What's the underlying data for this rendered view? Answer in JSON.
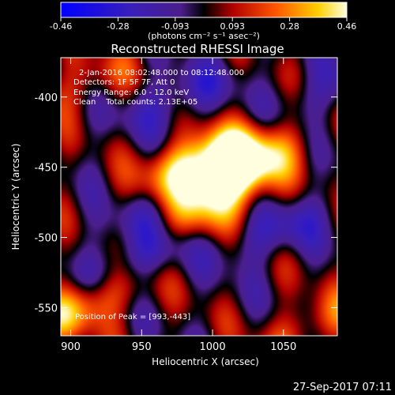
{
  "colorbar": {
    "ticks": [
      "-0.46",
      "-0.28",
      "-0.093",
      "0.093",
      "0.28",
      "0.46"
    ],
    "unit_label": "(photons cm⁻² s⁻¹ asec⁻²)"
  },
  "annotations": {
    "time_range": "2-Jan-2016 08:02:48.000 to 08:12:48.000",
    "detectors": "Detectors: 1F 5F 7F, Att 0",
    "energy": "Energy Range: 6.0 - 12.0 keV",
    "clean": "Clean    Total counts: 2.13E+05",
    "peak": "Position of Peak = [993,-443]"
  },
  "timestamp": "27-Sep-2017 07:11",
  "colors": {
    "background": "#000000",
    "text": "#ffffff"
  },
  "chart_data": {
    "type": "heatmap",
    "title": "Reconstructed RHESSI Image",
    "xlabel": "Heliocentric X (arcsec)",
    "ylabel": "Heliocentric Y (arcsec)",
    "xlim": [
      893,
      1088
    ],
    "ylim": [
      -570,
      -372
    ],
    "xticks": [
      900,
      950,
      1000,
      1050
    ],
    "yticks": [
      -550,
      -500,
      -450,
      -400
    ],
    "color_range": [
      -0.46,
      0.46
    ],
    "peak": [
      993,
      -443
    ],
    "sources": [
      {
        "x": 993,
        "y": -443,
        "value": 0.46
      },
      {
        "x": 1018,
        "y": -450,
        "value": 0.4
      },
      {
        "x": 1003,
        "y": -465,
        "value": 0.35
      },
      {
        "x": 990,
        "y": -488,
        "value": 0.24
      },
      {
        "x": 906,
        "y": -550,
        "value": 0.32
      },
      {
        "x": 1075,
        "y": -560,
        "value": 0.2
      },
      {
        "x": 910,
        "y": -390,
        "value": 0.15
      },
      {
        "x": 955,
        "y": -510,
        "value": -0.25
      },
      {
        "x": 963,
        "y": -480,
        "value": -0.2
      },
      {
        "x": 975,
        "y": -400,
        "value": -0.2
      },
      {
        "x": 1045,
        "y": -495,
        "value": -0.2
      },
      {
        "x": 1080,
        "y": -395,
        "value": -0.15
      }
    ]
  }
}
